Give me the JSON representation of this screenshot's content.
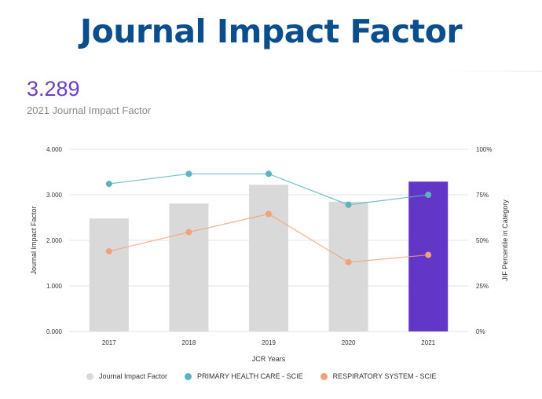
{
  "banner_title": "Journal Impact Factor",
  "headline": {
    "value": "3.289",
    "caption": "2021 Journal Impact Factor"
  },
  "colors": {
    "banner": "#0b4e8c",
    "value": "#6a3fc4",
    "bar": "#d9d9d9",
    "bar_highlight": "#6236c7",
    "primary_health_care": "#5bb3bf",
    "respiratory_system": "#f2a27a"
  },
  "chart_data": {
    "type": "bar",
    "xlabel": "JCR Years",
    "ylabel": "Journal Impact Factor",
    "y2label": "JIF Percentile in Category",
    "categories": [
      "2017",
      "2018",
      "2019",
      "2020",
      "2021"
    ],
    "ylim": [
      0,
      4
    ],
    "yticks": [
      "0.000",
      "1.000",
      "2.000",
      "3.000",
      "4.000"
    ],
    "y2lim": [
      0,
      100
    ],
    "y2ticks": [
      "0%",
      "25%",
      "50%",
      "75%",
      "100%"
    ],
    "bars": {
      "name": "Journal Impact Factor",
      "values": [
        2.48,
        2.81,
        3.22,
        2.85,
        3.289
      ],
      "highlight_index": 4
    },
    "series": [
      {
        "name": "PRIMARY HEALTH CARE - SCIE",
        "axis": "right",
        "values": [
          81,
          86.5,
          86.5,
          69.5,
          75
        ]
      },
      {
        "name": "RESPIRATORY SYSTEM - SCIE",
        "axis": "right",
        "values": [
          44,
          54.5,
          64.5,
          38,
          42
        ]
      }
    ],
    "grid": true,
    "legend_position": "bottom"
  }
}
